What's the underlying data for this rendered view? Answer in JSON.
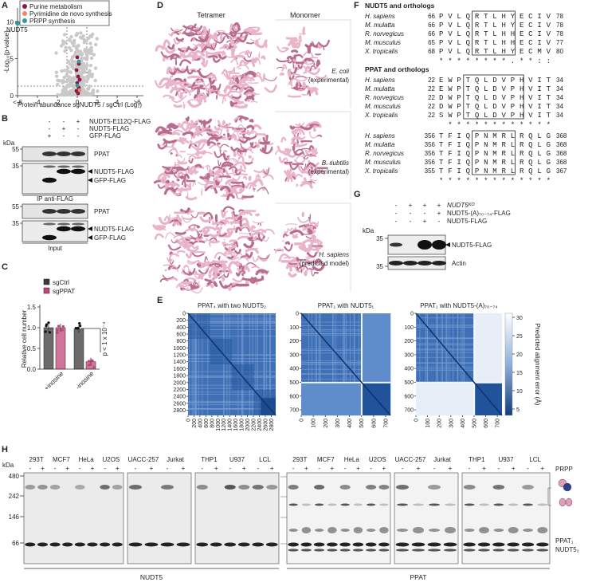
{
  "panel_labels": [
    "A",
    "B",
    "C",
    "D",
    "E",
    "F",
    "G",
    "H"
  ],
  "A": {
    "legend": [
      {
        "name": "Purine metabolism",
        "color": "#8b1a4b"
      },
      {
        "name": "Pyrimidine de novo synthesis",
        "color": "#f4845f"
      },
      {
        "name": "PRPP synthesis",
        "color": "#2e9c9c"
      }
    ],
    "y_label": "-Log₁₀(p-value)",
    "x_label": "Protein abundance sgNUDT5 / sgCtrl (Log₂)",
    "ylim": [
      0,
      11
    ],
    "yticks": [
      0,
      5,
      10
    ],
    "xticks": [
      "<-6",
      "-4",
      "-2",
      "0",
      "2",
      "4",
      ">6"
    ],
    "highlight": "NUDT5"
  },
  "B": {
    "conditions": [
      {
        "name": "NUDT5-E112Q-FLAG",
        "signs": [
          "-",
          "-",
          "+"
        ]
      },
      {
        "name": "NUDT5-FLAG",
        "signs": [
          "-",
          "+",
          "-"
        ]
      },
      {
        "name": "GFP-FLAG",
        "signs": [
          "+",
          "-",
          "-"
        ]
      }
    ],
    "kda": "kDa",
    "blots": [
      {
        "marker": 55,
        "labels": [
          "PPAT"
        ]
      },
      {
        "marker": 35,
        "labels": [
          "NUDT5-FLAG",
          "GFP-FLAG"
        ]
      },
      {
        "marker": 55,
        "labels": [
          "PPAT"
        ]
      },
      {
        "marker": 35,
        "labels": [
          "NUDT5-FLAG",
          "GFP-FLAG"
        ]
      }
    ],
    "sections": [
      "IP anti-FLAG",
      "Input"
    ]
  },
  "C": {
    "y_label": "Relative cell number",
    "ylim": [
      0,
      1.5
    ],
    "yticks": [
      {
        "value": 0,
        "label": "0.0"
      },
      {
        "value": 0.5,
        "label": "0.5"
      },
      {
        "value": 1,
        "label": "1.0"
      },
      {
        "value": 1.5,
        "label": "1.5"
      }
    ],
    "categories": [
      "+inosine",
      "-inosine"
    ],
    "series": [
      {
        "name": "sgCtrl",
        "color": "#3a3a3a",
        "values": [
          1,
          0.97
        ]
      },
      {
        "name": "sgPPAT",
        "color": "#c2457a",
        "values": [
          1,
          0.18
        ]
      }
    ],
    "p_value": "p < 1 x 10⁻⁴"
  },
  "D": {
    "columns": [
      "Tetramer",
      "Monomer"
    ],
    "models": [
      [
        "E. coli",
        "(experimental)"
      ],
      [
        "B. subtilis",
        "(experimental)"
      ],
      [
        "H. sapiens",
        "(predicted model)"
      ]
    ]
  },
  "E": {
    "maps": [
      {
        "title": "PPAT₄ with two NUDT5₂",
        "lim": [
          0,
          2950
        ],
        "ticks": [
          0,
          200,
          400,
          600,
          800,
          1000,
          1200,
          1400,
          1600,
          1800,
          2000,
          2200,
          2400,
          2600,
          2800
        ]
      },
      {
        "title": "PPAT₁ with NUDT5₁",
        "lim": [
          0,
          740
        ],
        "ticks": [
          0,
          100,
          200,
          300,
          400,
          500,
          600,
          700
        ]
      },
      {
        "title": "PPAT₁ with NUDT5-(A)₇₀₋₇₄",
        "lim": [
          0,
          740
        ],
        "ticks": [
          0,
          100,
          200,
          300,
          400,
          500,
          600,
          700
        ]
      }
    ],
    "colorbar_label": "Predicted alignment error (Å)",
    "colorbar_ticks": [
      30,
      25,
      20,
      15,
      10,
      5
    ]
  },
  "F": {
    "alignments": [
      {
        "title": "NUDT5 and orthologs",
        "rows": [
          {
            "species": "H. sapiens",
            "start": 66,
            "seq": "PVLQRTLHYECIV",
            "end": 78
          },
          {
            "species": "M. mulatta",
            "start": 66,
            "seq": "PVLQRTLHYECIV",
            "end": 78
          },
          {
            "species": "R. norvegicus",
            "start": 66,
            "seq": "PVLQRTLHHECIV",
            "end": 78
          },
          {
            "species": "M. musculus",
            "start": 65,
            "seq": "PVLQRTLHHECIV",
            "end": 77
          },
          {
            "species": "X. tropicalis",
            "start": 68,
            "seq": "PVLQRTLHYECMV",
            "end": 80
          }
        ],
        "conservation": "********.**::"
      },
      {
        "title": "PPAT and orthologs",
        "rows": [
          {
            "species": "H. sapiens",
            "start": 22,
            "seq": "EWPTQLDVPHVIT",
            "end": 34
          },
          {
            "species": "M. mulatta",
            "start": 22,
            "seq": "EWPTQLDVPHVIT",
            "end": 34
          },
          {
            "species": "R. norvegicus",
            "start": 22,
            "seq": "DWPTQLDVPHVIT",
            "end": 34
          },
          {
            "species": "M. musculus",
            "start": 22,
            "seq": "DWPTQLDVPHVIT",
            "end": 34
          },
          {
            "species": "X. tropicalis",
            "start": 22,
            "seq": "SWPTQLDVPHVIT",
            "end": 34
          }
        ],
        "conservation": " ************"
      },
      {
        "rows": [
          {
            "species": "H. sapiens",
            "start": 356,
            "seq": "TFIQPNMRLRQLG",
            "end": 368
          },
          {
            "species": "M. mulatta",
            "start": 356,
            "seq": "TFIQPNMRLRQLG",
            "end": 368
          },
          {
            "species": "R. norvegicus",
            "start": 356,
            "seq": "TFIQPNMRLRQLG",
            "end": 368
          },
          {
            "species": "M. musculus",
            "start": 356,
            "seq": "TFIQPNMRLRQLG",
            "end": 368
          },
          {
            "species": "X. tropicalis",
            "start": 355,
            "seq": "TFIQPNMRLRQLG",
            "end": 367
          }
        ],
        "conservation": "*************"
      }
    ]
  },
  "G": {
    "conditions": [
      {
        "name": "NUDT5ᴷᴼ",
        "signs": [
          "-",
          "+",
          "+",
          "+"
        ]
      },
      {
        "name": "NUDT5-(A)₇₀₋₇₄-FLAG",
        "signs": [
          "-",
          "-",
          "-",
          "+"
        ]
      },
      {
        "name": "NUDT5-FLAG",
        "signs": [
          "-",
          "-",
          "+",
          "-"
        ]
      }
    ],
    "kda": "kDa",
    "blots": [
      {
        "marker": 35,
        "label": "NUDT5-FLAG"
      },
      {
        "marker": 35,
        "label": "Actin"
      }
    ]
  },
  "H": {
    "kda": "kDa",
    "markers": [
      480,
      242,
      146,
      66
    ],
    "groups": [
      [
        "293T",
        "MCF7",
        "HeLa",
        "U2OS"
      ],
      [
        "UACC-257",
        "Jurkat"
      ],
      [
        "THP1",
        "U937",
        "LCL"
      ]
    ],
    "signs": [
      "-",
      "+"
    ],
    "treatment": "PRPP",
    "gels": [
      "NUDT5",
      "PPAT"
    ],
    "bands": [
      "PPAT₁",
      "NUDT5₂"
    ]
  }
}
